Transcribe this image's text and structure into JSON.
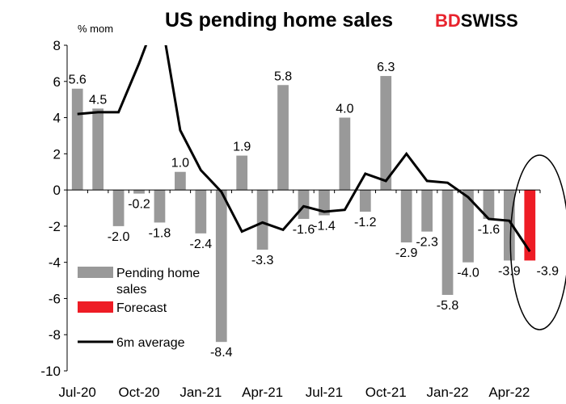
{
  "brand": {
    "part1": "BD",
    "part2": "SWISS",
    "part1_color": "#e8232d",
    "part2_color": "#000000"
  },
  "chart_data": {
    "type": "bar",
    "title": "US pending home sales",
    "ylabel": "% mom",
    "ylim": [
      -10,
      8
    ],
    "yticks": [
      -10,
      -8,
      -6,
      -4,
      -2,
      0,
      2,
      4,
      6,
      8
    ],
    "categories": [
      "Jul-20",
      "Aug-20",
      "Sep-20",
      "Oct-20",
      "Nov-20",
      "Dec-20",
      "Jan-21",
      "Feb-21",
      "Mar-21",
      "Apr-21",
      "May-21",
      "Jun-21",
      "Jul-21",
      "Aug-21",
      "Sep-21",
      "Oct-21",
      "Nov-21",
      "Dec-21",
      "Jan-22",
      "Feb-22",
      "Mar-22",
      "Apr-22",
      "May-22"
    ],
    "xtick_labels": [
      "Jul-20",
      "Oct-20",
      "Jan-21",
      "Apr-21",
      "Jul-21",
      "Oct-21",
      "Jan-22",
      "Apr-22"
    ],
    "xtick_indices": [
      0,
      3,
      6,
      9,
      12,
      15,
      18,
      21
    ],
    "series": [
      {
        "name": "Pending home sales",
        "type": "bar",
        "color": "#999999",
        "values": [
          5.6,
          4.5,
          -2.0,
          -0.2,
          -1.8,
          1.0,
          -2.4,
          -8.4,
          1.9,
          -3.3,
          5.8,
          -1.6,
          -1.4,
          4.0,
          -1.2,
          6.3,
          -2.9,
          -2.3,
          -5.8,
          -4.0,
          -1.6,
          -3.9,
          null
        ]
      },
      {
        "name": "Forecast",
        "type": "bar",
        "color": "#ee1c25",
        "values": [
          null,
          null,
          null,
          null,
          null,
          null,
          null,
          null,
          null,
          null,
          null,
          null,
          null,
          null,
          null,
          null,
          null,
          null,
          null,
          null,
          null,
          null,
          -3.9
        ]
      },
      {
        "name": "6m average",
        "type": "line",
        "color": "#000000",
        "values": [
          4.2,
          4.3,
          4.3,
          7.0,
          10.0,
          3.3,
          1.1,
          -0.1,
          -2.3,
          -1.8,
          -2.2,
          -0.9,
          -1.2,
          -1.1,
          0.9,
          0.5,
          2.0,
          0.5,
          0.4,
          -0.4,
          -1.6,
          -1.7,
          -3.4
        ]
      }
    ],
    "data_labels": [
      "5.6",
      "4.5",
      "-2.0",
      "-0.2",
      "-1.8",
      "1.0",
      "-2.4",
      "-8.4",
      "1.9",
      "-3.3",
      "5.8",
      "-1.6",
      "-1.4",
      "4.0",
      "-1.2",
      "6.3",
      "-2.9",
      "-2.3",
      "-5.8",
      "-4.0",
      "-1.6",
      "-3.9",
      "-3.9"
    ],
    "legend": {
      "placement": "bottom-left",
      "items": [
        {
          "label_line1": "Pending home",
          "label_line2": "sales",
          "color": "#999999",
          "kind": "bar"
        },
        {
          "label_line1": "Forecast",
          "label_line2": "",
          "color": "#ee1c25",
          "kind": "bar"
        },
        {
          "label_line1": "6m average",
          "label_line2": "",
          "color": "#000000",
          "kind": "line"
        }
      ]
    },
    "highlight": "ellipse around forecast"
  }
}
